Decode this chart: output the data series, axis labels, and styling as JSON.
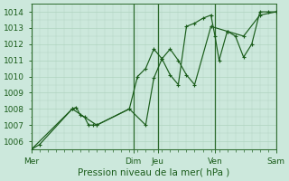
{
  "xlabel": "Pression niveau de la mer( hPa )",
  "background_color": "#cce8dc",
  "grid_color_minor": "#b0d4c0",
  "grid_color_major": "#90b8a0",
  "line_color": "#1a5c1a",
  "vline_color": "#2d6b2d",
  "ylim": [
    1005.5,
    1014.5
  ],
  "xlim": [
    0,
    30
  ],
  "yticks": [
    1006,
    1007,
    1008,
    1009,
    1010,
    1011,
    1012,
    1013,
    1014
  ],
  "day_labels": [
    "Mer",
    "Dim",
    "Jeu",
    "Ven",
    "Sam"
  ],
  "day_x": [
    0,
    12.5,
    15.5,
    22.5,
    30
  ],
  "vline_x": [
    0,
    12.5,
    15.5,
    22.5,
    30
  ],
  "line1_x": [
    0,
    1,
    5,
    5.5,
    6,
    6.5,
    7,
    7.5,
    8,
    12,
    13,
    14,
    15,
    16,
    17,
    18,
    19,
    20,
    21,
    22,
    22.5,
    23,
    24,
    25,
    26,
    27,
    28,
    29,
    30
  ],
  "line1_y": [
    1005.5,
    1005.8,
    1008.0,
    1008.1,
    1007.6,
    1007.5,
    1007.0,
    1007.0,
    1007.0,
    1008.0,
    1010.0,
    1010.5,
    1011.7,
    1011.1,
    1010.1,
    1009.5,
    1013.1,
    1013.3,
    1013.6,
    1013.8,
    1012.5,
    1011.0,
    1012.8,
    1012.5,
    1011.2,
    1012.0,
    1014.0,
    1014.0,
    1014.0
  ],
  "line2_x": [
    0,
    5,
    8,
    12,
    14,
    15,
    16,
    17,
    18,
    19,
    20,
    22,
    24,
    26,
    28,
    30
  ],
  "line2_y": [
    1005.5,
    1008.0,
    1007.0,
    1008.0,
    1007.0,
    1009.9,
    1011.1,
    1011.7,
    1011.0,
    1010.1,
    1009.5,
    1013.1,
    1012.8,
    1012.5,
    1013.8,
    1014.0
  ]
}
